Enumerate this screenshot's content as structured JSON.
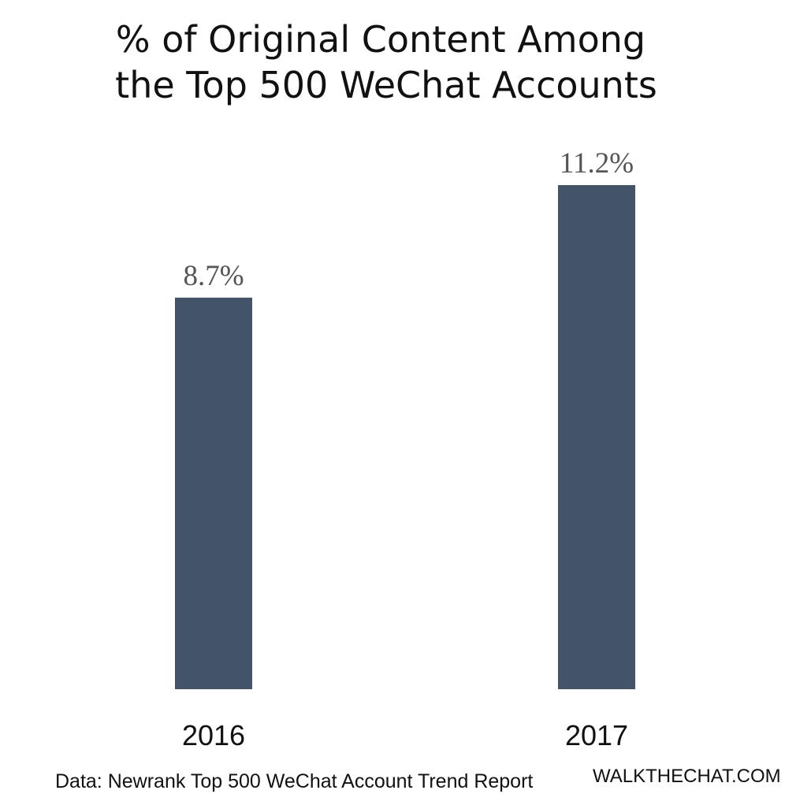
{
  "chart_data": {
    "type": "bar",
    "title_lines": [
      "% of Original Content Among",
      "the Top 500 WeChat Accounts"
    ],
    "categories": [
      "2016",
      "2017"
    ],
    "values": [
      8.7,
      11.2
    ],
    "value_labels": [
      "8.7%",
      "11.2%"
    ],
    "unit": "%",
    "ylim": [
      0,
      11.2
    ],
    "grid": false,
    "legend": "none",
    "xlabel": "",
    "ylabel": ""
  },
  "source": "Data: Newrank Top 500 WeChat Account Trend Report",
  "brand": "WALKTHECHAT.COM",
  "colors": {
    "bar": "#435468",
    "value_label": "#555555",
    "text": "#111111",
    "background": "#ffffff"
  }
}
